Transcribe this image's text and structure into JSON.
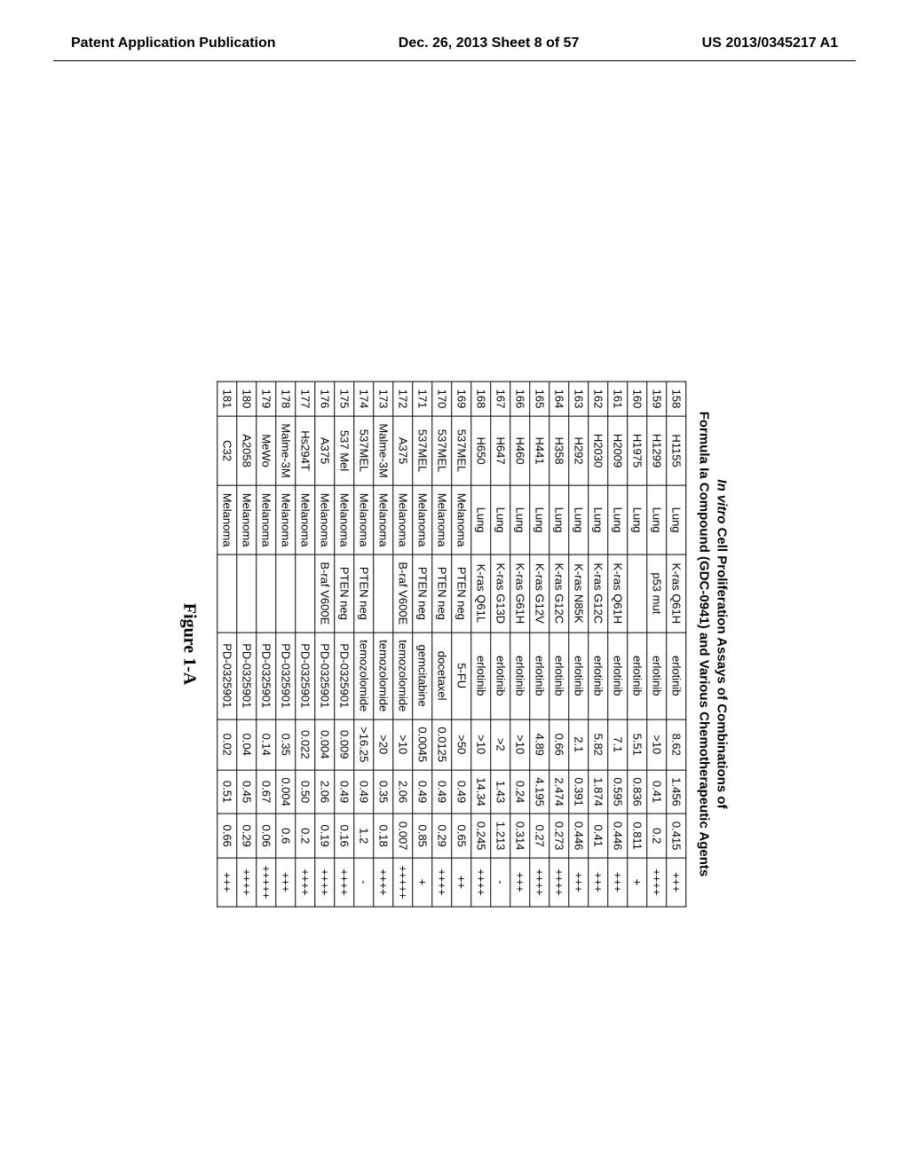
{
  "header": {
    "left": "Patent Application Publication",
    "center": "Dec. 26, 2013  Sheet 8 of 57",
    "right": "US 2013/0345217 A1"
  },
  "title": {
    "line1_italic": "In vitro",
    "line1_rest": " Cell Proliferation Assays of Combinations of",
    "line2": "Formula Ia Compound (GDC-0941) and Various Chemotherapeutic Agents"
  },
  "figure_label": "Figure 1-A",
  "table": {
    "rows": [
      [
        "158",
        "H1155",
        "Lung",
        "K-ras Q61H",
        "erlotinib",
        "8.62",
        "1.456",
        "0.415",
        "+++"
      ],
      [
        "159",
        "H1299",
        "Lung",
        "p53 mut",
        "erlotinib",
        ">10",
        "0.41",
        "0.2",
        "++++"
      ],
      [
        "160",
        "H1975",
        "Lung",
        "",
        "erlotinib",
        "5.51",
        "0.836",
        "0.811",
        "+"
      ],
      [
        "161",
        "H2009",
        "Lung",
        "K-ras Q61H",
        "erlotinib",
        "7.1",
        "0.595",
        "0.446",
        "+++"
      ],
      [
        "162",
        "H2030",
        "Lung",
        "K-ras G12C",
        "erlotinib",
        "5.82",
        "1.874",
        "0.41",
        "+++"
      ],
      [
        "163",
        "H292",
        "Lung",
        "K-ras N85K",
        "erlotinib",
        "2.1",
        "0.391",
        "0.446",
        "+++"
      ],
      [
        "164",
        "H358",
        "Lung",
        "K-ras G12C",
        "erlotinib",
        "0.66",
        "2.474",
        "0.273",
        "++++"
      ],
      [
        "165",
        "H441",
        "Lung",
        "K-ras G12V",
        "erlotinib",
        "4.89",
        "4.195",
        "0.27",
        "++++"
      ],
      [
        "166",
        "H460",
        "Lung",
        "K-ras G61H",
        "erlotinib",
        ">10",
        "0.24",
        "0.314",
        "+++"
      ],
      [
        "167",
        "H647",
        "Lung",
        "K-ras G13D",
        "erlotinib",
        ">2",
        "1.43",
        "1.213",
        "-"
      ],
      [
        "168",
        "H650",
        "Lung",
        "K-ras Q61L",
        "erlotinib",
        ">10",
        "14.34",
        "0.245",
        "++++"
      ],
      [
        "169",
        "537MEL",
        "Melanoma",
        "PTEN neg",
        "5-FU",
        ">50",
        "0.49",
        "0.65",
        "++"
      ],
      [
        "170",
        "537MEL",
        "Melanoma",
        "PTEN neg",
        "docetaxel",
        "0.0125",
        "0.49",
        "0.29",
        "++++"
      ],
      [
        "171",
        "537MEL",
        "Melanoma",
        "PTEN neg",
        "gemcitabine",
        "0.0045",
        "0.49",
        "0.85",
        "+"
      ],
      [
        "172",
        "A375",
        "Melanoma",
        "B-raf V600E",
        "temozolomide",
        ">10",
        "2.06",
        "0.007",
        "+++++"
      ],
      [
        "173",
        "Malme-3M",
        "Melanoma",
        "",
        "temozolomide",
        ">20",
        "0.35",
        "0.18",
        "++++"
      ],
      [
        "174",
        "537MEL",
        "Melanoma",
        "PTEN neg",
        "temozolomide",
        ">16.25",
        "0.49",
        "1.2",
        "-"
      ],
      [
        "175",
        "537 Mel",
        "Melanoma",
        "PTEN neg",
        "PD-0325901",
        "0.009",
        "0.49",
        "0.16",
        "++++"
      ],
      [
        "176",
        "A375",
        "Melanoma",
        "B-raf V600E",
        "PD-0325901",
        "0.004",
        "2.06",
        "0.19",
        "++++"
      ],
      [
        "177",
        "Hs294T",
        "Melanoma",
        "",
        "PD-0325901",
        "0.022",
        "0.50",
        "0.2",
        "++++"
      ],
      [
        "178",
        "Malme-3M",
        "Melanoma",
        "",
        "PD-0325901",
        "0.35",
        "0.004",
        "0.6",
        "+++"
      ],
      [
        "179",
        "MeWo",
        "Melanoma",
        "",
        "PD-0325901",
        "0.14",
        "0.67",
        "0.06",
        "+++++"
      ],
      [
        "180",
        "A2058",
        "Melanoma",
        "",
        "PD-0325901",
        "0.04",
        "0.45",
        "0.29",
        "++++"
      ],
      [
        "181",
        "C32",
        "Melanoma",
        "",
        "PD-0325901",
        "0.02",
        "0.51",
        "0.66",
        "+++"
      ]
    ]
  }
}
